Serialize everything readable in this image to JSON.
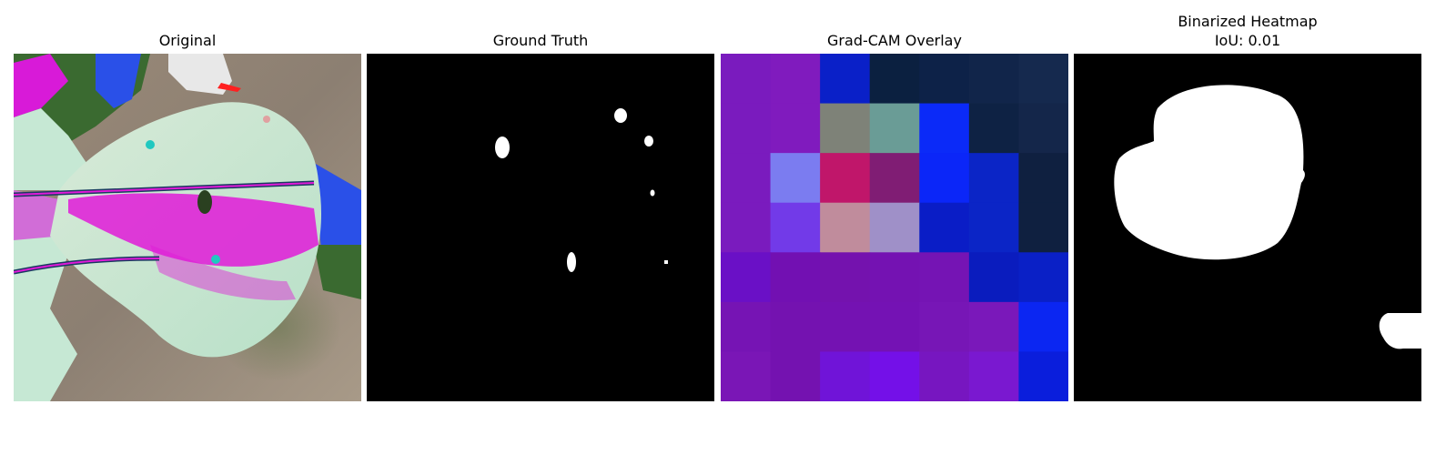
{
  "panels": {
    "original": {
      "title": "Original"
    },
    "ground_truth": {
      "title": "Ground Truth"
    },
    "gradcam_overlay": {
      "title": "Grad-CAM Overlay"
    },
    "binarized_heatmap": {
      "title": "Binarized Heatmap",
      "subtitle": "IoU: 0.01"
    }
  },
  "gradcam_grid_colors": [
    [
      "#7a1bbe",
      "#801bbe",
      "#0a20c8",
      "#0b2040",
      "#0d2248",
      "#11254a",
      "#15294e"
    ],
    [
      "#7a1bbe",
      "#801bbe",
      "#7e8278",
      "#6a9c96",
      "#0b2af8",
      "#0e2244",
      "#14264a"
    ],
    [
      "#7a1bbe",
      "#7b7cf0",
      "#c0166a",
      "#801d74",
      "#0b26f8",
      "#0b25c6",
      "#0f2040"
    ],
    [
      "#7a1bbe",
      "#723ae8",
      "#c08c9c",
      "#9f90c8",
      "#0a1dc6",
      "#0b25c6",
      "#0f2040"
    ],
    [
      "#6a10c6",
      "#7210b2",
      "#7412ae",
      "#7412b2",
      "#7514b4",
      "#0a1cbe",
      "#0a20c6"
    ],
    [
      "#7614b4",
      "#7412b0",
      "#7412b2",
      "#7412b4",
      "#7716b6",
      "#7a18ba",
      "#0b26f2"
    ],
    [
      "#7a16b6",
      "#7412b0",
      "#7014d8",
      "#7410e8",
      "#7716c0",
      "#7a18d0",
      "#0a1edc"
    ]
  ],
  "colors": {
    "background": "#ffffff",
    "mask_background": "#000000",
    "mask_foreground": "#ffffff"
  }
}
